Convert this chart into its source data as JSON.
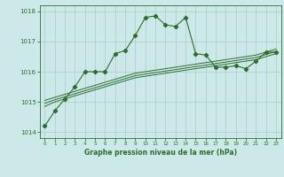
{
  "bg_color": "#cce8e8",
  "grid_color": "#aacccc",
  "line_color": "#2d6e2d",
  "title": "Graphe pression niveau de la mer (hPa)",
  "xlim": [
    -0.5,
    23.5
  ],
  "ylim": [
    1013.8,
    1018.2
  ],
  "yticks": [
    1014,
    1015,
    1016,
    1017,
    1018
  ],
  "xticks": [
    0,
    1,
    2,
    3,
    4,
    5,
    6,
    7,
    8,
    9,
    10,
    11,
    12,
    13,
    14,
    15,
    16,
    17,
    18,
    19,
    20,
    21,
    22,
    23
  ],
  "main_series": [
    1014.2,
    1014.7,
    1015.1,
    1015.5,
    1016.0,
    1016.0,
    1016.0,
    1016.6,
    1016.7,
    1017.2,
    1017.8,
    1017.85,
    1017.55,
    1017.5,
    1017.8,
    1016.6,
    1016.55,
    1016.15,
    1016.15,
    1016.2,
    1016.1,
    1016.35,
    1016.65,
    1016.65
  ],
  "line2_series": [
    1014.85,
    1015.0,
    1015.1,
    1015.2,
    1015.3,
    1015.4,
    1015.5,
    1015.6,
    1015.7,
    1015.8,
    1015.85,
    1015.9,
    1015.95,
    1016.0,
    1016.05,
    1016.1,
    1016.15,
    1016.2,
    1016.25,
    1016.3,
    1016.35,
    1016.4,
    1016.5,
    1016.6
  ],
  "line3_series": [
    1014.95,
    1015.07,
    1015.17,
    1015.27,
    1015.37,
    1015.47,
    1015.57,
    1015.67,
    1015.77,
    1015.87,
    1015.92,
    1015.97,
    1016.02,
    1016.07,
    1016.12,
    1016.17,
    1016.22,
    1016.27,
    1016.32,
    1016.37,
    1016.42,
    1016.47,
    1016.57,
    1016.67
  ],
  "line4_series": [
    1015.05,
    1015.15,
    1015.25,
    1015.35,
    1015.45,
    1015.55,
    1015.65,
    1015.75,
    1015.85,
    1015.95,
    1016.0,
    1016.05,
    1016.1,
    1016.15,
    1016.2,
    1016.25,
    1016.3,
    1016.35,
    1016.4,
    1016.45,
    1016.5,
    1016.55,
    1016.65,
    1016.75
  ]
}
